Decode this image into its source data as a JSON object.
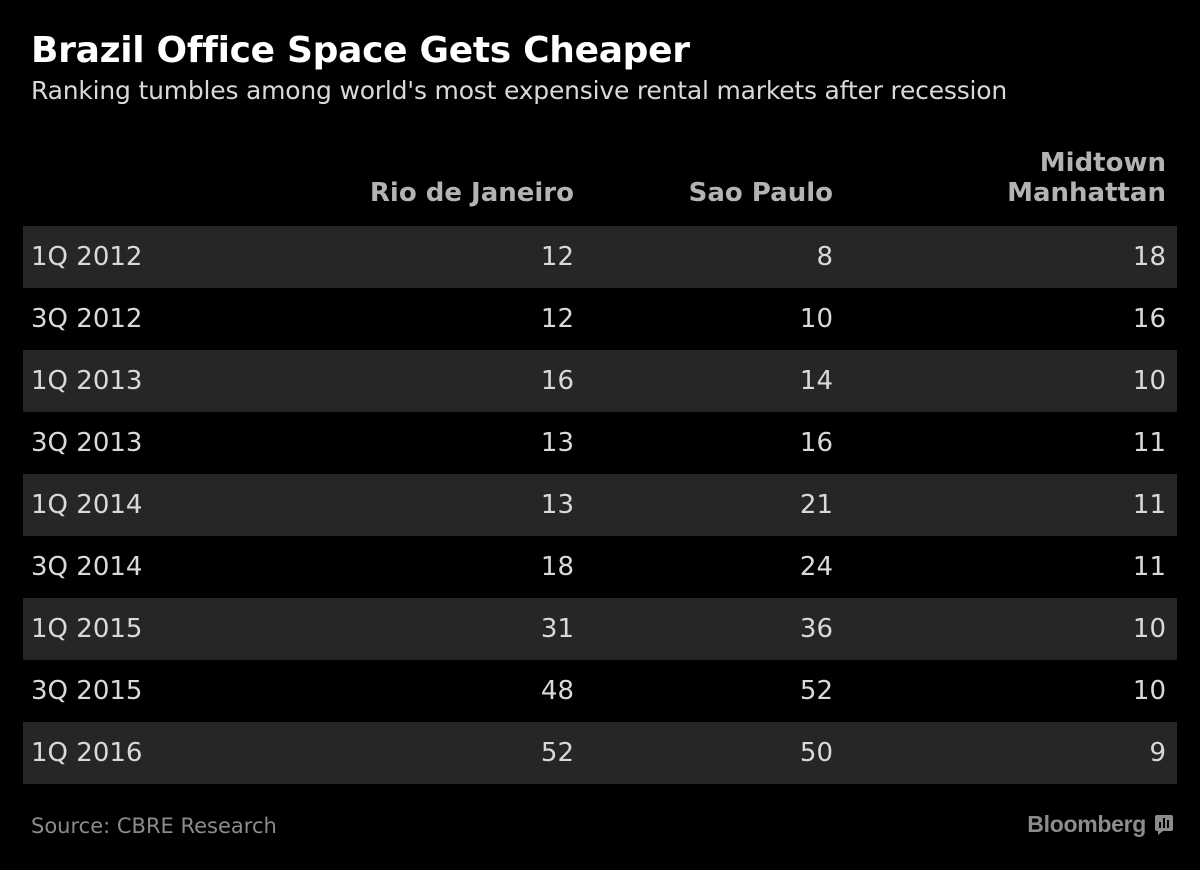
{
  "chart_data": {
    "type": "table",
    "title": "Brazil Office Space Gets Cheaper",
    "subtitle": "Ranking tumbles among world's most expensive rental markets after recession",
    "columns": [
      "Rio de Janeiro",
      "Sao Paulo",
      "Midtown\nManhattan"
    ],
    "rows": [
      {
        "period": "1Q 2012",
        "values": [
          "12",
          "8",
          "18"
        ]
      },
      {
        "period": "3Q 2012",
        "values": [
          "12",
          "10",
          "16"
        ]
      },
      {
        "period": "1Q 2013",
        "values": [
          "16",
          "14",
          "10"
        ]
      },
      {
        "period": "3Q 2013",
        "values": [
          "13",
          "16",
          "11"
        ]
      },
      {
        "period": "1Q 2014",
        "values": [
          "13",
          "21",
          "11"
        ]
      },
      {
        "period": "3Q 2014",
        "values": [
          "18",
          "24",
          "11"
        ]
      },
      {
        "period": "1Q 2015",
        "values": [
          "31",
          "36",
          "10"
        ]
      },
      {
        "period": "3Q 2015",
        "values": [
          "48",
          "52",
          "10"
        ]
      },
      {
        "period": "1Q 2016",
        "values": [
          "52",
          "50",
          "9"
        ]
      }
    ],
    "source": "Source: CBRE Research"
  },
  "brand": {
    "name": "Bloomberg",
    "icon": "bloomberg-logo-icon"
  },
  "colors": {
    "background": "#000000",
    "row_shade": "#262626",
    "title": "#ffffff",
    "text": "#d9d9d9",
    "muted": "#8c8c8c"
  }
}
